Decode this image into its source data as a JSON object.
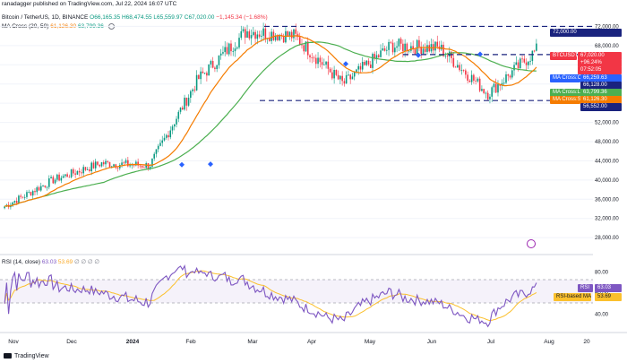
{
  "header": {
    "published": "ranadagger published on TradingView.com, Jul 22, 2024 16:07 UTC",
    "symbol": "Bitcoin / TetherUS, 1D, BINANCE",
    "o": "O66,165.35",
    "h": "H68,474.55",
    "l": "L65,559.97",
    "c": "C67,020.00",
    "change": "−1,145.34 (−1.68%)",
    "ma_indicator": "MA Cross (20, 50)",
    "ma_v1": "61,126.30",
    "ma_v2": "63,799.36",
    "rsi_indicator": "RSI (14, close)",
    "rsi_v1": "63.03",
    "rsi_v2": "53.69",
    "rsi_zeros": "∅ ∅ ∅ ∅"
  },
  "badges": {
    "btcusdt": "BTCUSDT",
    "price": "67,020.00",
    "change": "+96.24%",
    "countdown": "07:52:05",
    "ma_cross": "MA Cross:Cross",
    "ma_cross_val": "66,259.63",
    "level_66": "66,128.00",
    "ma_long": "MA Cross:Long MA",
    "ma_long_val": "63,799.36",
    "ma_short": "MA Cross:Short MA",
    "ma_short_val": "61,126.30",
    "level_56": "56,552.00",
    "level_72": "72,000.00",
    "rsi_label": "RSI",
    "rsi_val": "63.03",
    "rsi_ma_label": "RSI-based MA",
    "rsi_ma_val": "53.69"
  },
  "footer": {
    "brand": "TradingView"
  },
  "colors": {
    "up": "#089981",
    "down": "#f23645",
    "ma_short": "#f57c00",
    "ma_long": "#4caf50",
    "rsi": "#7e57c2",
    "rsi_ma": "#fbc02d",
    "level": "#1a237e"
  },
  "chart_data": [
    {
      "type": "candlestick",
      "title": "Bitcoin / TetherUS, 1D, BINANCE",
      "x_tick_labels": [
        "Nov",
        "Dec",
        "2024",
        "Feb",
        "Mar",
        "Apr",
        "May",
        "Jun",
        "Jul",
        "Aug",
        "20"
      ],
      "y_tick_labels": [
        "28,000.00",
        "32,000.00",
        "36,000.00",
        "40,000.00",
        "44,000.00",
        "48,000.00",
        "52,000.00",
        "56,000.00",
        "60,000.00",
        "64,000.00",
        "68,000.00",
        "72,000.00"
      ],
      "ylim": [
        25600,
        76000
      ],
      "horizontal_levels": [
        72000,
        66128,
        56552
      ],
      "monthly_close_points": [
        {
          "x": "Nov",
          "close": 34500
        },
        {
          "x": "Dec",
          "close": 40000
        },
        {
          "x": "2024",
          "close": 43500
        },
        {
          "x": "Feb",
          "close": 43000
        },
        {
          "x": "Mar",
          "close": 61000
        },
        {
          "x": "Mar-mid",
          "close": 71000
        },
        {
          "x": "Apr",
          "close": 70000
        },
        {
          "x": "May",
          "close": 60000
        },
        {
          "x": "May-end",
          "close": 68000
        },
        {
          "x": "Jun",
          "close": 67500
        },
        {
          "x": "Jul",
          "close": 58000
        },
        {
          "x": "Jul-22",
          "close": 67020
        }
      ],
      "series": [
        {
          "name": "MA Cross:Short MA",
          "last": 61126.3
        },
        {
          "name": "MA Cross:Long MA",
          "last": 63799.36
        }
      ]
    },
    {
      "type": "line",
      "title": "RSI (14, close)",
      "y_tick_labels": [
        "40.00",
        "60.00",
        "80.00"
      ],
      "ylim": [
        25,
        90
      ],
      "bands": [
        30,
        70
      ],
      "series": [
        {
          "name": "RSI",
          "last": 63.03
        },
        {
          "name": "RSI-based MA",
          "last": 53.69
        }
      ]
    }
  ]
}
